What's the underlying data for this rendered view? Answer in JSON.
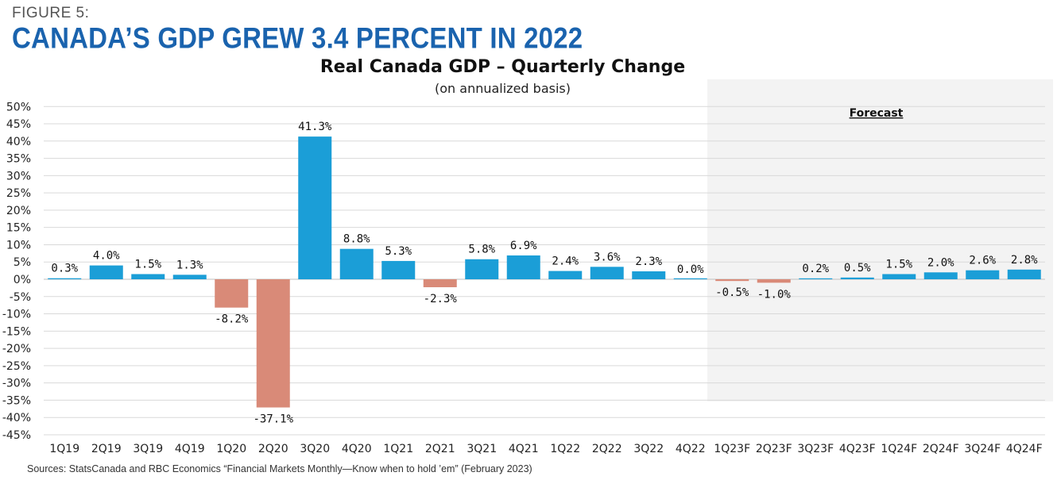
{
  "figure": {
    "label": "FIGURE 5:",
    "title": "CANADA’S GDP GREW 3.4 PERCENT IN 2022",
    "source": "Sources: StatsCanada and RBC Economics “Financial Markets Monthly—Know when to hold ’em” (February 2023)"
  },
  "chart_data": {
    "type": "bar",
    "title": "Real Canada GDP – Quarterly Change",
    "subtitle": "(on annualized basis)",
    "xlabel": "",
    "ylabel": "",
    "ylim": [
      -45,
      50
    ],
    "ytick_step": 5,
    "ytick_labels": [
      "50%",
      "45%",
      "40%",
      "35%",
      "30%",
      "25%",
      "20%",
      "15%",
      "10%",
      "5%",
      "0%",
      "-5%",
      "-10%",
      "-15%",
      "-20%",
      "-25%",
      "-30%",
      "-35%",
      "-40%",
      "-45%"
    ],
    "grid": true,
    "categories": [
      "1Q19",
      "2Q19",
      "3Q19",
      "4Q19",
      "1Q20",
      "2Q20",
      "3Q20",
      "4Q20",
      "1Q21",
      "2Q21",
      "3Q21",
      "4Q21",
      "1Q22",
      "2Q22",
      "3Q22",
      "4Q22",
      "1Q23F",
      "2Q23F",
      "3Q23F",
      "4Q23F",
      "1Q24F",
      "2Q24F",
      "3Q24F",
      "4Q24F"
    ],
    "values": [
      0.3,
      4.0,
      1.5,
      1.3,
      -8.2,
      -37.1,
      41.3,
      8.8,
      5.3,
      -2.3,
      5.8,
      6.9,
      2.4,
      3.6,
      2.3,
      0.0,
      -0.5,
      -1.0,
      0.2,
      0.5,
      1.5,
      2.0,
      2.6,
      2.8
    ],
    "data_labels": [
      "0.3%",
      "4.0%",
      "1.5%",
      "1.3%",
      "-8.2%",
      "-37.1%",
      "41.3%",
      "8.8%",
      "5.3%",
      "-2.3%",
      "5.8%",
      "6.9%",
      "2.4%",
      "3.6%",
      "2.3%",
      "0.0%",
      "-0.5%",
      "-1.0%",
      "0.2%",
      "0.5%",
      "1.5%",
      "2.0%",
      "2.6%",
      "2.8%"
    ],
    "forecast": {
      "label": "Forecast",
      "start_category": "1Q23F",
      "shading": "#f3f3f3"
    },
    "colors": {
      "positive": "#1b9ed7",
      "negative": "#d98a78",
      "grid": "#d9d9d9"
    }
  }
}
